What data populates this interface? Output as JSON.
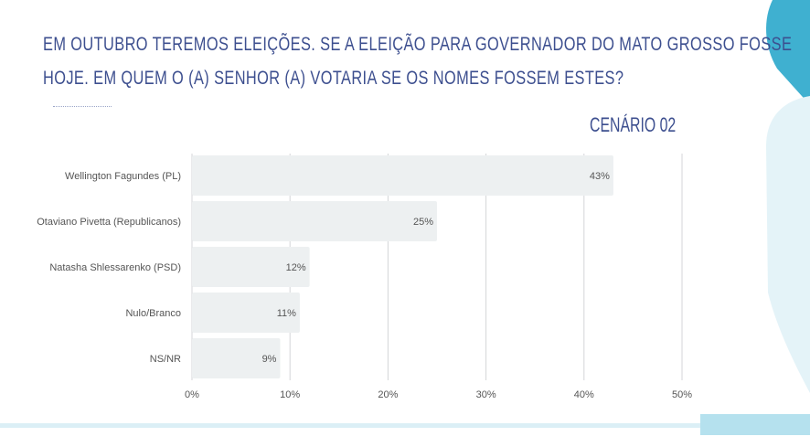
{
  "title_lines": [
    "EM OUTUBRO TEREMOS ELEIÇÕES. SE A ELEIÇÃO PARA GOVERNADOR DO MATO GROSSO FOSSE",
    "HOJE. EM QUEM O (A) SENHOR (A) VOTARIA SE OS NOMES FOSSEM ESTES?"
  ],
  "scenario": "CENÁRIO 02",
  "colors": {
    "title": "#3d4f8f",
    "bar": "#edf0f1",
    "grid": "#d4d6d8",
    "accent": "#3fb0d0",
    "accent_light": "#dff1f7"
  },
  "chart_data": {
    "type": "bar",
    "orientation": "horizontal",
    "categories": [
      "Wellington Fagundes (PL)",
      "Otaviano Pivetta (Republicanos)",
      "Natasha Shlessarenko (PSD)",
      "Nulo/Branco",
      "NS/NR"
    ],
    "values": [
      43,
      25,
      12,
      11,
      9
    ],
    "value_labels": [
      "43%",
      "25%",
      "12%",
      "11%",
      "9%"
    ],
    "xlim": [
      0,
      50
    ],
    "xticks": [
      0,
      10,
      20,
      30,
      40,
      50
    ],
    "xtick_labels": [
      "0%",
      "10%",
      "20%",
      "30%",
      "40%",
      "50%"
    ],
    "grid": true,
    "title": "",
    "xlabel": "",
    "ylabel": ""
  }
}
